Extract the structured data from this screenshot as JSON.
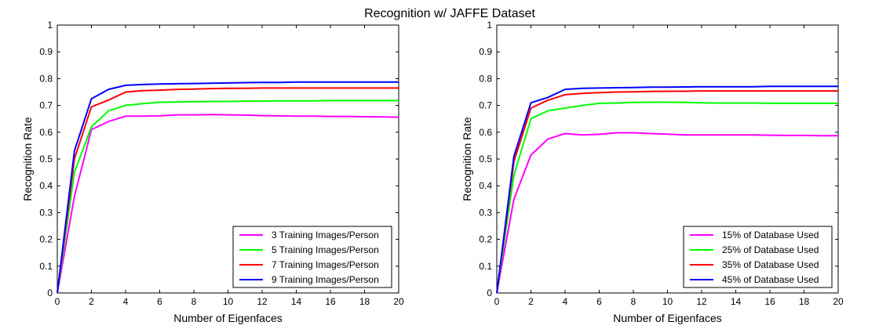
{
  "figure": {
    "title": "Recognition w/ JAFFE Dataset"
  },
  "chart_data": [
    {
      "type": "line",
      "xlabel": "Number of Eigenfaces",
      "ylabel": "Recognition Rate",
      "xlim": [
        0,
        20
      ],
      "ylim": [
        0,
        1
      ],
      "xticks": [
        "0",
        "2",
        "4",
        "6",
        "8",
        "10",
        "12",
        "14",
        "16",
        "18",
        "20"
      ],
      "yticks": [
        "0",
        "0.1",
        "0.2",
        "0.3",
        "0.4",
        "0.5",
        "0.6",
        "0.7",
        "0.8",
        "0.9",
        "1"
      ],
      "grid": false,
      "legend_position": "bottom-right",
      "x": [
        0,
        1,
        2,
        3,
        4,
        5,
        6,
        7,
        8,
        9,
        10,
        11,
        12,
        13,
        14,
        15,
        16,
        17,
        18,
        19,
        20
      ],
      "series": [
        {
          "name": "3 Training Images/Person",
          "color": "#ff00ff",
          "values": [
            0.0,
            0.36,
            0.61,
            0.64,
            0.66,
            0.66,
            0.661,
            0.665,
            0.665,
            0.666,
            0.665,
            0.664,
            0.662,
            0.661,
            0.66,
            0.66,
            0.659,
            0.659,
            0.658,
            0.657,
            0.656
          ]
        },
        {
          "name": "5 Training Images/Person",
          "color": "#00ff00",
          "values": [
            0.0,
            0.45,
            0.62,
            0.68,
            0.7,
            0.707,
            0.712,
            0.713,
            0.714,
            0.715,
            0.715,
            0.716,
            0.716,
            0.717,
            0.717,
            0.717,
            0.718,
            0.718,
            0.718,
            0.718,
            0.718
          ]
        },
        {
          "name": "7 Training Images/Person",
          "color": "#ff0000",
          "values": [
            0.0,
            0.5,
            0.695,
            0.72,
            0.75,
            0.755,
            0.757,
            0.76,
            0.761,
            0.763,
            0.764,
            0.764,
            0.765,
            0.765,
            0.765,
            0.765,
            0.765,
            0.765,
            0.765,
            0.765,
            0.765
          ]
        },
        {
          "name": "9 Training Images/Person",
          "color": "#0000ff",
          "values": [
            0.0,
            0.53,
            0.725,
            0.76,
            0.775,
            0.778,
            0.78,
            0.781,
            0.782,
            0.783,
            0.784,
            0.785,
            0.786,
            0.786,
            0.787,
            0.787,
            0.787,
            0.787,
            0.787,
            0.787,
            0.787
          ]
        }
      ]
    },
    {
      "type": "line",
      "xlabel": "Number of Eigenfaces",
      "ylabel": "Recognition Rate",
      "xlim": [
        0,
        20
      ],
      "ylim": [
        0,
        1
      ],
      "xticks": [
        "0",
        "2",
        "4",
        "6",
        "8",
        "10",
        "12",
        "14",
        "16",
        "18",
        "20"
      ],
      "yticks": [
        "0",
        "0.1",
        "0.2",
        "0.3",
        "0.4",
        "0.5",
        "0.6",
        "0.7",
        "0.8",
        "0.9",
        "1"
      ],
      "grid": false,
      "legend_position": "bottom-right",
      "x": [
        0,
        1,
        2,
        3,
        4,
        5,
        6,
        7,
        8,
        9,
        10,
        11,
        12,
        13,
        14,
        15,
        16,
        17,
        18,
        19,
        20
      ],
      "series": [
        {
          "name": "15% of Database Used",
          "color": "#ff00ff",
          "values": [
            0.0,
            0.35,
            0.515,
            0.575,
            0.595,
            0.59,
            0.592,
            0.598,
            0.598,
            0.595,
            0.593,
            0.59,
            0.59,
            0.59,
            0.59,
            0.59,
            0.589,
            0.588,
            0.588,
            0.587,
            0.587
          ]
        },
        {
          "name": "25% of Database Used",
          "color": "#00ff00",
          "values": [
            0.0,
            0.44,
            0.65,
            0.68,
            0.69,
            0.7,
            0.708,
            0.709,
            0.711,
            0.712,
            0.712,
            0.711,
            0.71,
            0.709,
            0.709,
            0.709,
            0.708,
            0.708,
            0.708,
            0.708,
            0.708
          ]
        },
        {
          "name": "35% of Database Used",
          "color": "#ff0000",
          "values": [
            0.0,
            0.49,
            0.69,
            0.72,
            0.74,
            0.745,
            0.748,
            0.75,
            0.751,
            0.752,
            0.753,
            0.753,
            0.754,
            0.754,
            0.754,
            0.754,
            0.754,
            0.754,
            0.754,
            0.754,
            0.754
          ]
        },
        {
          "name": "45% of Database Used",
          "color": "#0000ff",
          "values": [
            0.0,
            0.51,
            0.71,
            0.73,
            0.76,
            0.764,
            0.765,
            0.766,
            0.767,
            0.768,
            0.768,
            0.769,
            0.77,
            0.77,
            0.77,
            0.77,
            0.771,
            0.771,
            0.771,
            0.771,
            0.771
          ]
        }
      ]
    }
  ]
}
